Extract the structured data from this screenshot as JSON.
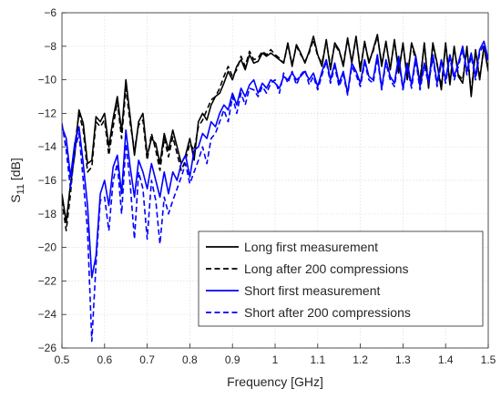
{
  "chart_data": {
    "type": "line",
    "xlabel": "Frequency [GHz]",
    "ylabel": "S",
    "ylabel_subscript": "11",
    "ylabel_unit": " [dB]",
    "xlim": [
      0.5,
      1.5
    ],
    "ylim": [
      -26,
      -6
    ],
    "xticks": [
      "0.5",
      "0.6",
      "0.7",
      "0.8",
      "0.9",
      "1",
      "1.1",
      "1.2",
      "1.3",
      "1.4",
      "1.5"
    ],
    "yticks": [
      "-6",
      "-8",
      "-10",
      "-12",
      "-14",
      "-16",
      "-18",
      "-20",
      "-22",
      "-24",
      "-26"
    ],
    "grid": true,
    "legend_position": "bottom-right",
    "series": [
      {
        "name": "Long first measurement",
        "color": "#000000",
        "dash": "solid",
        "x": [
          0.5,
          0.51,
          0.52,
          0.53,
          0.54,
          0.55,
          0.56,
          0.57,
          0.58,
          0.59,
          0.6,
          0.61,
          0.62,
          0.63,
          0.64,
          0.65,
          0.66,
          0.67,
          0.68,
          0.69,
          0.7,
          0.71,
          0.72,
          0.73,
          0.74,
          0.75,
          0.76,
          0.77,
          0.78,
          0.79,
          0.8,
          0.81,
          0.82,
          0.83,
          0.84,
          0.85,
          0.86,
          0.87,
          0.88,
          0.89,
          0.9,
          0.91,
          0.92,
          0.93,
          0.94,
          0.95,
          0.96,
          0.97,
          0.98,
          0.99,
          1.0,
          1.01,
          1.02,
          1.03,
          1.04,
          1.05,
          1.06,
          1.07,
          1.08,
          1.09,
          1.1,
          1.11,
          1.12,
          1.13,
          1.14,
          1.15,
          1.16,
          1.17,
          1.18,
          1.19,
          1.2,
          1.21,
          1.22,
          1.23,
          1.24,
          1.25,
          1.26,
          1.27,
          1.28,
          1.29,
          1.3,
          1.31,
          1.32,
          1.33,
          1.34,
          1.35,
          1.36,
          1.37,
          1.38,
          1.39,
          1.4,
          1.41,
          1.42,
          1.43,
          1.44,
          1.45,
          1.46,
          1.47,
          1.48,
          1.49,
          1.5
        ],
        "y": [
          -16.8,
          -18.5,
          -16.2,
          -14.5,
          -11.8,
          -12.6,
          -15.0,
          -14.8,
          -12.2,
          -12.5,
          -12.0,
          -14.0,
          -12.3,
          -11.0,
          -13.1,
          -10.0,
          -12.2,
          -14.5,
          -12.5,
          -12.0,
          -14.5,
          -13.5,
          -13.8,
          -15.0,
          -13.2,
          -14.2,
          -13.0,
          -14.0,
          -15.0,
          -14.5,
          -13.5,
          -14.8,
          -12.5,
          -12.0,
          -12.4,
          -11.5,
          -11.0,
          -10.8,
          -10.2,
          -9.5,
          -10.0,
          -9.2,
          -8.8,
          -9.4,
          -8.5,
          -9.0,
          -8.9,
          -8.4,
          -8.6,
          -8.4,
          -8.6,
          -8.8,
          -9.0,
          -7.8,
          -9.2,
          -7.9,
          -8.4,
          -9.0,
          -8.3,
          -7.4,
          -8.5,
          -9.2,
          -7.6,
          -9.4,
          -7.8,
          -8.2,
          -9.2,
          -7.5,
          -9.0,
          -7.4,
          -9.5,
          -7.7,
          -9.0,
          -8.2,
          -7.3,
          -9.2,
          -7.7,
          -9.4,
          -7.6,
          -9.6,
          -7.8,
          -10.0,
          -7.8,
          -8.6,
          -10.2,
          -7.8,
          -10.5,
          -7.8,
          -9.0,
          -10.6,
          -7.8,
          -10.3,
          -8.0,
          -9.8,
          -10.2,
          -8.0,
          -11.0,
          -8.2,
          -10.0,
          -8.0,
          -9.5
        ]
      },
      {
        "name": "Long after 200 compressions",
        "color": "#000000",
        "dash": "dashed",
        "x": [
          0.5,
          0.51,
          0.52,
          0.53,
          0.54,
          0.55,
          0.56,
          0.57,
          0.58,
          0.59,
          0.6,
          0.61,
          0.62,
          0.63,
          0.64,
          0.65,
          0.66,
          0.67,
          0.68,
          0.69,
          0.7,
          0.71,
          0.72,
          0.73,
          0.74,
          0.75,
          0.76,
          0.77,
          0.78,
          0.79,
          0.8,
          0.81,
          0.82,
          0.83,
          0.84,
          0.85,
          0.86,
          0.87,
          0.88,
          0.89,
          0.9,
          0.91,
          0.92,
          0.93,
          0.94,
          0.95,
          0.96,
          0.97,
          0.98,
          0.99,
          1.0,
          1.01,
          1.02,
          1.03,
          1.04,
          1.05,
          1.06,
          1.07,
          1.08,
          1.09,
          1.1,
          1.11,
          1.12,
          1.13,
          1.14,
          1.15,
          1.16,
          1.17,
          1.18,
          1.19,
          1.2,
          1.21,
          1.22,
          1.23,
          1.24,
          1.25,
          1.26,
          1.27,
          1.28,
          1.29,
          1.3,
          1.31,
          1.32,
          1.33,
          1.34,
          1.35,
          1.36,
          1.37,
          1.38,
          1.39,
          1.4,
          1.41,
          1.42,
          1.43,
          1.44,
          1.45,
          1.46,
          1.47,
          1.48,
          1.49,
          1.5
        ],
        "y": [
          -17.2,
          -19.0,
          -16.8,
          -14.0,
          -12.0,
          -13.0,
          -15.5,
          -15.2,
          -12.5,
          -12.8,
          -12.4,
          -14.5,
          -12.8,
          -11.3,
          -13.5,
          -10.5,
          -12.6,
          -14.2,
          -12.7,
          -12.4,
          -14.8,
          -13.2,
          -14.2,
          -15.4,
          -13.5,
          -14.6,
          -13.4,
          -14.4,
          -15.4,
          -14.8,
          -13.8,
          -14.2,
          -12.8,
          -12.4,
          -11.8,
          -11.2,
          -11.0,
          -10.5,
          -9.8,
          -9.2,
          -9.8,
          -9.4,
          -8.6,
          -9.2,
          -8.3,
          -8.8,
          -8.7,
          -8.3,
          -8.5,
          -8.2,
          -8.5,
          -8.7,
          -9.0,
          -7.9,
          -9.1,
          -8.0,
          -8.5,
          -8.9,
          -8.4,
          -7.6,
          -8.6,
          -9.0,
          -7.7,
          -9.2,
          -7.9,
          -8.3,
          -9.0,
          -7.6,
          -8.9,
          -7.5,
          -9.3,
          -7.8,
          -8.9,
          -8.3,
          -7.4,
          -9.0,
          -7.8,
          -9.3,
          -7.7,
          -9.4,
          -7.9,
          -9.8,
          -7.9,
          -8.8,
          -10.0,
          -7.9,
          -10.3,
          -7.9,
          -9.1,
          -10.4,
          -7.9,
          -10.1,
          -8.1,
          -9.7,
          -10.0,
          -8.1,
          -10.8,
          -8.3,
          -9.9,
          -8.1,
          -9.4
        ]
      },
      {
        "name": "Short first measurement",
        "color": "#0000ff",
        "dash": "solid",
        "x": [
          0.5,
          0.51,
          0.52,
          0.53,
          0.54,
          0.55,
          0.56,
          0.57,
          0.58,
          0.59,
          0.6,
          0.61,
          0.62,
          0.63,
          0.64,
          0.65,
          0.66,
          0.67,
          0.68,
          0.69,
          0.7,
          0.71,
          0.72,
          0.73,
          0.74,
          0.75,
          0.76,
          0.77,
          0.78,
          0.79,
          0.8,
          0.81,
          0.82,
          0.83,
          0.84,
          0.85,
          0.86,
          0.87,
          0.88,
          0.89,
          0.9,
          0.91,
          0.92,
          0.93,
          0.94,
          0.95,
          0.96,
          0.97,
          0.98,
          0.99,
          1.0,
          1.01,
          1.02,
          1.03,
          1.04,
          1.05,
          1.06,
          1.07,
          1.08,
          1.09,
          1.1,
          1.11,
          1.12,
          1.13,
          1.14,
          1.15,
          1.16,
          1.17,
          1.18,
          1.19,
          1.2,
          1.21,
          1.22,
          1.23,
          1.24,
          1.25,
          1.26,
          1.27,
          1.28,
          1.29,
          1.3,
          1.31,
          1.32,
          1.33,
          1.34,
          1.35,
          1.36,
          1.37,
          1.38,
          1.39,
          1.4,
          1.41,
          1.42,
          1.43,
          1.44,
          1.45,
          1.46,
          1.47,
          1.48,
          1.49,
          1.5
        ],
        "y": [
          -12.8,
          -13.5,
          -15.8,
          -13.8,
          -12.8,
          -15.0,
          -17.5,
          -21.8,
          -20.5,
          -16.8,
          -16.0,
          -17.5,
          -15.2,
          -14.5,
          -16.8,
          -13.0,
          -15.2,
          -17.0,
          -14.8,
          -15.5,
          -16.5,
          -15.0,
          -16.0,
          -17.0,
          -15.5,
          -16.8,
          -15.5,
          -16.0,
          -15.0,
          -14.5,
          -15.8,
          -14.2,
          -14.0,
          -13.2,
          -13.5,
          -12.5,
          -12.8,
          -12.0,
          -11.5,
          -11.8,
          -10.8,
          -11.5,
          -10.5,
          -11.0,
          -10.3,
          -10.0,
          -10.8,
          -10.2,
          -10.5,
          -10.0,
          -10.2,
          -10.5,
          -9.8,
          -10.0,
          -9.6,
          -10.0,
          -9.8,
          -9.5,
          -10.0,
          -9.6,
          -10.4,
          -9.5,
          -8.8,
          -10.0,
          -9.0,
          -10.2,
          -9.5,
          -10.8,
          -9.0,
          -9.5,
          -10.2,
          -8.8,
          -9.8,
          -10.0,
          -8.5,
          -10.5,
          -8.8,
          -9.8,
          -10.2,
          -8.6,
          -10.5,
          -9.0,
          -10.3,
          -8.6,
          -10.4,
          -9.0,
          -10.0,
          -8.5,
          -10.2,
          -8.8,
          -10.0,
          -8.5,
          -9.8,
          -9.0,
          -8.0,
          -9.5,
          -8.4,
          -9.8,
          -8.2,
          -7.7,
          -8.8
        ]
      },
      {
        "name": "Short after 200 compressions",
        "color": "#0000ff",
        "dash": "dashed",
        "x": [
          0.5,
          0.51,
          0.52,
          0.53,
          0.54,
          0.55,
          0.56,
          0.57,
          0.58,
          0.59,
          0.6,
          0.61,
          0.62,
          0.63,
          0.64,
          0.65,
          0.66,
          0.67,
          0.68,
          0.69,
          0.7,
          0.71,
          0.72,
          0.73,
          0.74,
          0.75,
          0.76,
          0.77,
          0.78,
          0.79,
          0.8,
          0.81,
          0.82,
          0.83,
          0.84,
          0.85,
          0.86,
          0.87,
          0.88,
          0.89,
          0.9,
          0.91,
          0.92,
          0.93,
          0.94,
          0.95,
          0.96,
          0.97,
          0.98,
          0.99,
          1.0,
          1.01,
          1.02,
          1.03,
          1.04,
          1.05,
          1.06,
          1.07,
          1.08,
          1.09,
          1.1,
          1.11,
          1.12,
          1.13,
          1.14,
          1.15,
          1.16,
          1.17,
          1.18,
          1.19,
          1.2,
          1.21,
          1.22,
          1.23,
          1.24,
          1.25,
          1.26,
          1.27,
          1.28,
          1.29,
          1.3,
          1.31,
          1.32,
          1.33,
          1.34,
          1.35,
          1.36,
          1.37,
          1.38,
          1.39,
          1.4,
          1.41,
          1.42,
          1.43,
          1.44,
          1.45,
          1.46,
          1.47,
          1.48,
          1.49,
          1.5
        ],
        "y": [
          -12.6,
          -14.2,
          -16.5,
          -14.2,
          -13.2,
          -16.0,
          -19.0,
          -25.6,
          -21.0,
          -17.2,
          -17.0,
          -19.0,
          -16.0,
          -15.0,
          -18.0,
          -13.8,
          -16.2,
          -19.5,
          -15.5,
          -16.5,
          -19.5,
          -16.0,
          -17.2,
          -19.8,
          -17.0,
          -18.0,
          -17.2,
          -16.5,
          -15.8,
          -15.0,
          -16.2,
          -15.5,
          -14.8,
          -14.0,
          -15.0,
          -13.5,
          -13.2,
          -12.5,
          -11.8,
          -12.5,
          -11.0,
          -12.0,
          -10.8,
          -11.5,
          -10.5,
          -10.6,
          -11.0,
          -10.4,
          -10.8,
          -10.2,
          -10.0,
          -10.8,
          -9.6,
          -10.2,
          -9.5,
          -10.3,
          -9.7,
          -9.4,
          -10.3,
          -9.8,
          -10.6,
          -9.7,
          -8.9,
          -10.2,
          -9.2,
          -10.4,
          -9.7,
          -10.9,
          -9.2,
          -9.7,
          -10.4,
          -9.0,
          -10.0,
          -10.2,
          -8.7,
          -10.6,
          -9.0,
          -10.0,
          -10.4,
          -8.8,
          -10.6,
          -9.2,
          -10.5,
          -8.8,
          -10.6,
          -9.2,
          -10.2,
          -8.7,
          -10.4,
          -9.0,
          -10.2,
          -8.7,
          -10.0,
          -9.2,
          -8.2,
          -9.7,
          -8.6,
          -10.0,
          -8.4,
          -7.9,
          -9.0
        ]
      }
    ]
  }
}
